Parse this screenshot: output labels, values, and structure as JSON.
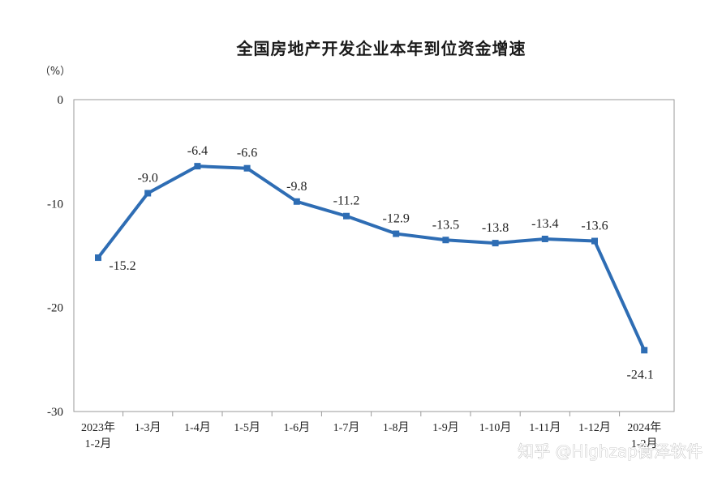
{
  "chart_data": {
    "type": "line",
    "title": "全国房地产开发企业本年到位资金增速",
    "unit": "（%）",
    "categories": [
      "2023年|1-2月",
      "1-3月",
      "1-4月",
      "1-5月",
      "1-6月",
      "1-7月",
      "1-8月",
      "1-9月",
      "1-10月",
      "1-11月",
      "1-12月",
      "2024年|1-2月"
    ],
    "series": [
      {
        "values": [
          -15.2,
          -9.0,
          -6.4,
          -6.6,
          -9.8,
          -11.2,
          -12.9,
          -13.5,
          -13.8,
          -13.4,
          -13.6,
          -24.1
        ],
        "labels": [
          "-15.2",
          "-9.0",
          "-6.4",
          "-6.6",
          "-9.8",
          "-11.2",
          "-12.9",
          "-13.5",
          "-13.8",
          "-13.4",
          "-13.6",
          "-24.1"
        ],
        "color": "#2e6db4"
      }
    ],
    "ylim": [
      -30,
      0
    ],
    "yticks": [
      0,
      -10,
      -20,
      -30
    ],
    "ytick_labels": [
      "0",
      "-10",
      "-20",
      "-30"
    ],
    "grid": false,
    "legend": "none"
  },
  "watermark": "知乎 @Highzap衡泽软件"
}
